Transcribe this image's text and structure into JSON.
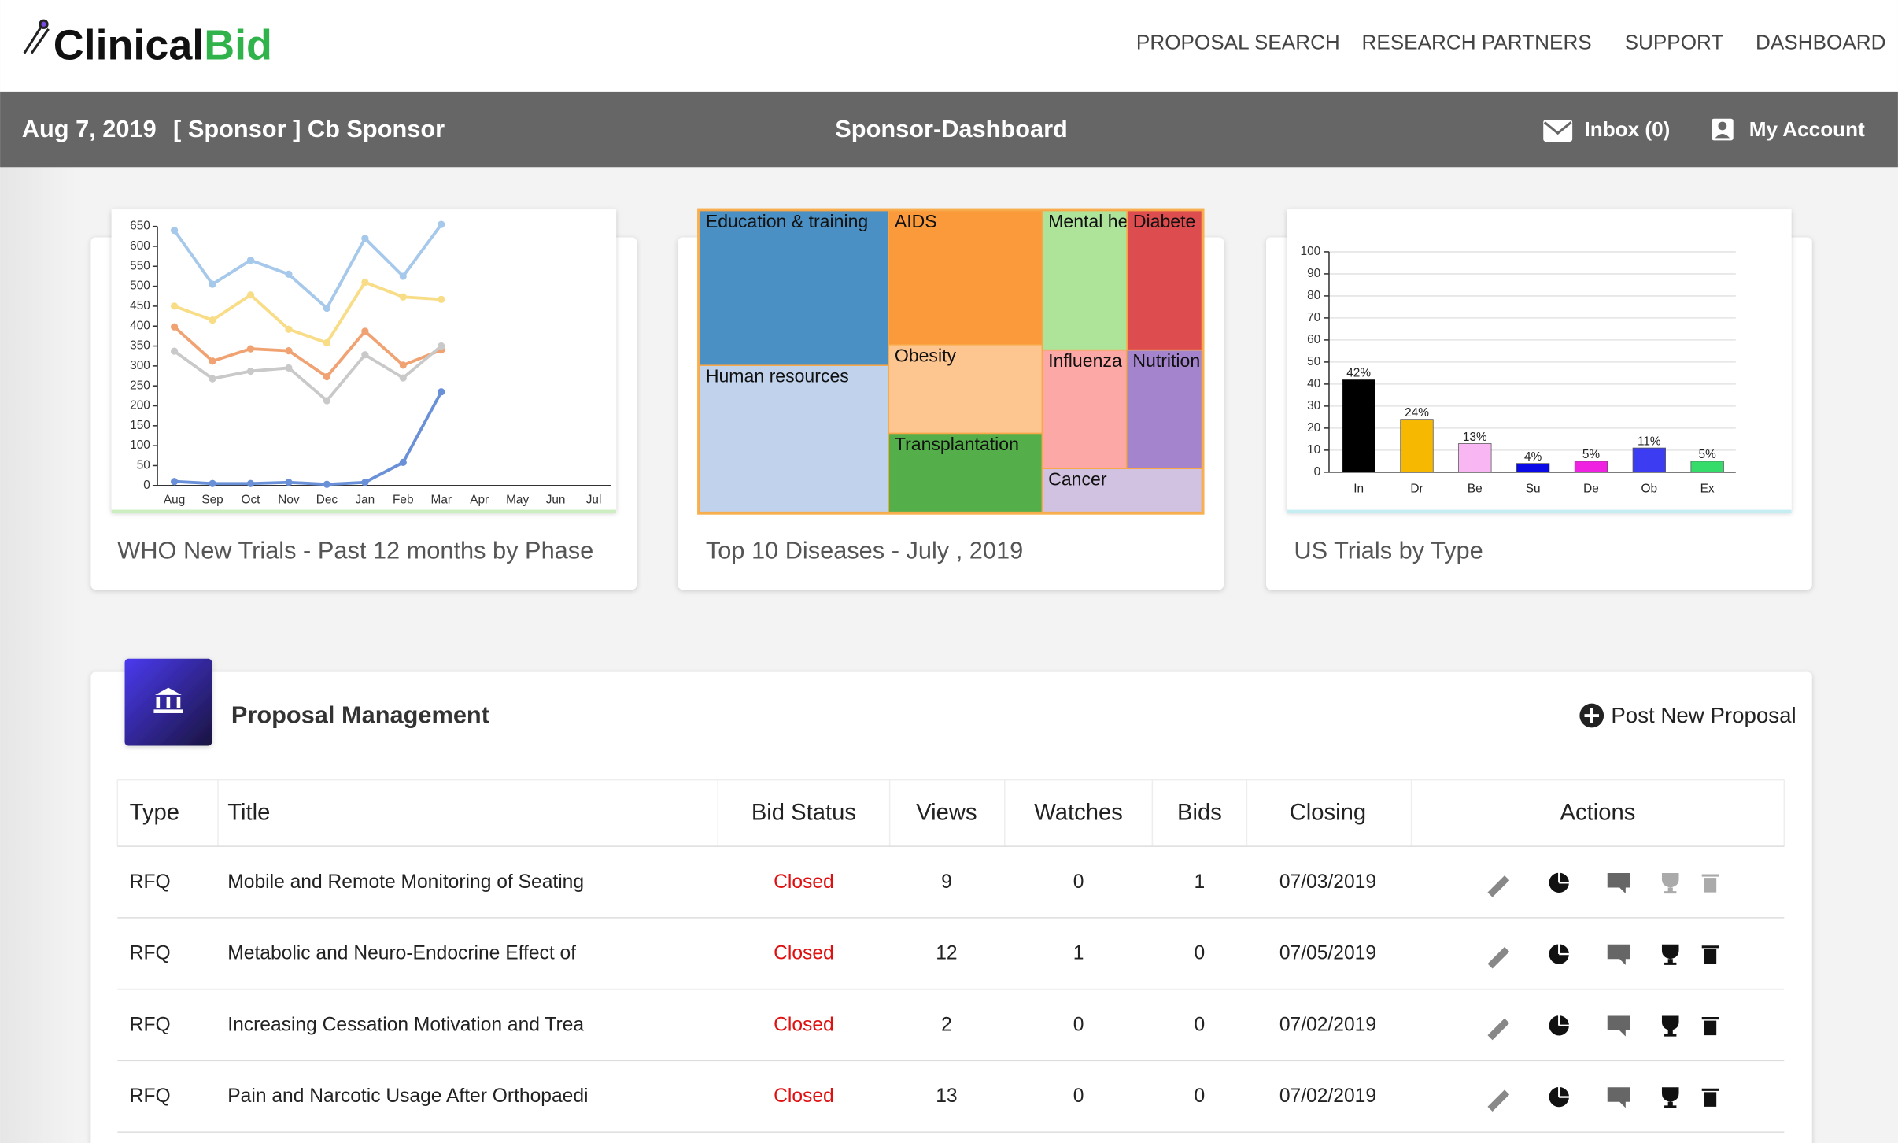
{
  "brand": {
    "part1": "Clinical",
    "part2": "Bid"
  },
  "nav": [
    "PROPOSAL SEARCH",
    "RESEARCH PARTNERS",
    "SUPPORT",
    "DASHBOARD"
  ],
  "header": {
    "date": "Aug 7, 2019",
    "role": "[ Sponsor ] Cb Sponsor",
    "title": "Sponsor-Dashboard",
    "inbox": "Inbox (0)",
    "account": "My Account"
  },
  "charts": [
    {
      "type": "line",
      "caption": "WHO New Trials - Past 12 months by Phase",
      "categories": [
        "Aug",
        "Sep",
        "Oct",
        "Nov",
        "Dec",
        "Jan",
        "Feb",
        "Mar",
        "Apr",
        "May",
        "Jun",
        "Jul"
      ],
      "series": [
        {
          "color": "#a6c8ea",
          "values": [
            640,
            505,
            565,
            530,
            445,
            620,
            525,
            655,
            null,
            null,
            null,
            null
          ]
        },
        {
          "color": "#f8dc86",
          "values": [
            450,
            415,
            478,
            392,
            358,
            510,
            473,
            467,
            null,
            null,
            null,
            null
          ]
        },
        {
          "color": "#f0a272",
          "values": [
            398,
            312,
            343,
            338,
            273,
            387,
            302,
            340,
            null,
            null,
            null,
            null
          ]
        },
        {
          "color": "#c9c9c9",
          "values": [
            337,
            268,
            287,
            295,
            213,
            328,
            270,
            350,
            null,
            null,
            null,
            null
          ]
        },
        {
          "color": "#6a90d8",
          "values": [
            10,
            5,
            5,
            8,
            3,
            8,
            58,
            235,
            null,
            null,
            null,
            null
          ]
        }
      ],
      "ylim": [
        0,
        650
      ],
      "yticks": [
        0,
        50,
        100,
        150,
        200,
        250,
        300,
        350,
        400,
        450,
        500,
        550,
        600,
        650
      ]
    },
    {
      "type": "treemap",
      "caption": "Top 10 Diseases - July , 2019",
      "categories": [
        "Education & training",
        "Human resources",
        "AIDS",
        "Obesity",
        "Transplantation",
        "Mental he",
        "Diabete",
        "Influenza",
        "Nutrition",
        "Cancer"
      ],
      "values": [
        19.3,
        18.3,
        13.6,
        9.0,
        8.0,
        7.8,
        6.9,
        6.6,
        5.9,
        4.6
      ],
      "colors": [
        "#4a90c4",
        "#c0d2ec",
        "#fa9a3a",
        "#fdc690",
        "#54ae4a",
        "#aee49a",
        "#dd4d4f",
        "#fca8a6",
        "#a484cc",
        "#d0c2e0"
      ]
    },
    {
      "type": "bar",
      "caption": "US Trials by Type",
      "categories": [
        "In",
        "Dr",
        "Be",
        "Su",
        "De",
        "Ob",
        "Ex"
      ],
      "values": [
        42,
        24,
        13,
        4,
        5,
        11,
        5
      ],
      "value_labels": [
        "42%",
        "24%",
        "13%",
        "4%",
        "5%",
        "11%",
        "5%"
      ],
      "colors": [
        "#000000",
        "#f6b800",
        "#f8b6f2",
        "#0a0ae6",
        "#f022e2",
        "#3c3cf2",
        "#36dc6a"
      ],
      "ylim": [
        0,
        100
      ],
      "yticks": [
        0,
        10,
        20,
        30,
        40,
        50,
        60,
        70,
        80,
        90,
        100
      ],
      "grid": true
    }
  ],
  "proposals": {
    "title": "Proposal Management",
    "post": "Post New Proposal",
    "columns": [
      "Type",
      "Title",
      "Bid Status",
      "Views",
      "Watches",
      "Bids",
      "Closing",
      "Actions"
    ],
    "rows": [
      [
        "RFQ",
        "Mobile and Remote Monitoring of Seating",
        "Closed",
        "9",
        "0",
        "1",
        "07/03/2019"
      ],
      [
        "RFQ",
        "Metabolic and Neuro-Endocrine Effect of",
        "Closed",
        "12",
        "1",
        "0",
        "07/05/2019"
      ],
      [
        "RFQ",
        "Increasing Cessation Motivation and Trea",
        "Closed",
        "2",
        "0",
        "0",
        "07/02/2019"
      ],
      [
        "RFQ",
        "Pain and Narcotic Usage After Orthopaedi",
        "Closed",
        "13",
        "0",
        "0",
        "07/02/2019"
      ]
    ]
  }
}
